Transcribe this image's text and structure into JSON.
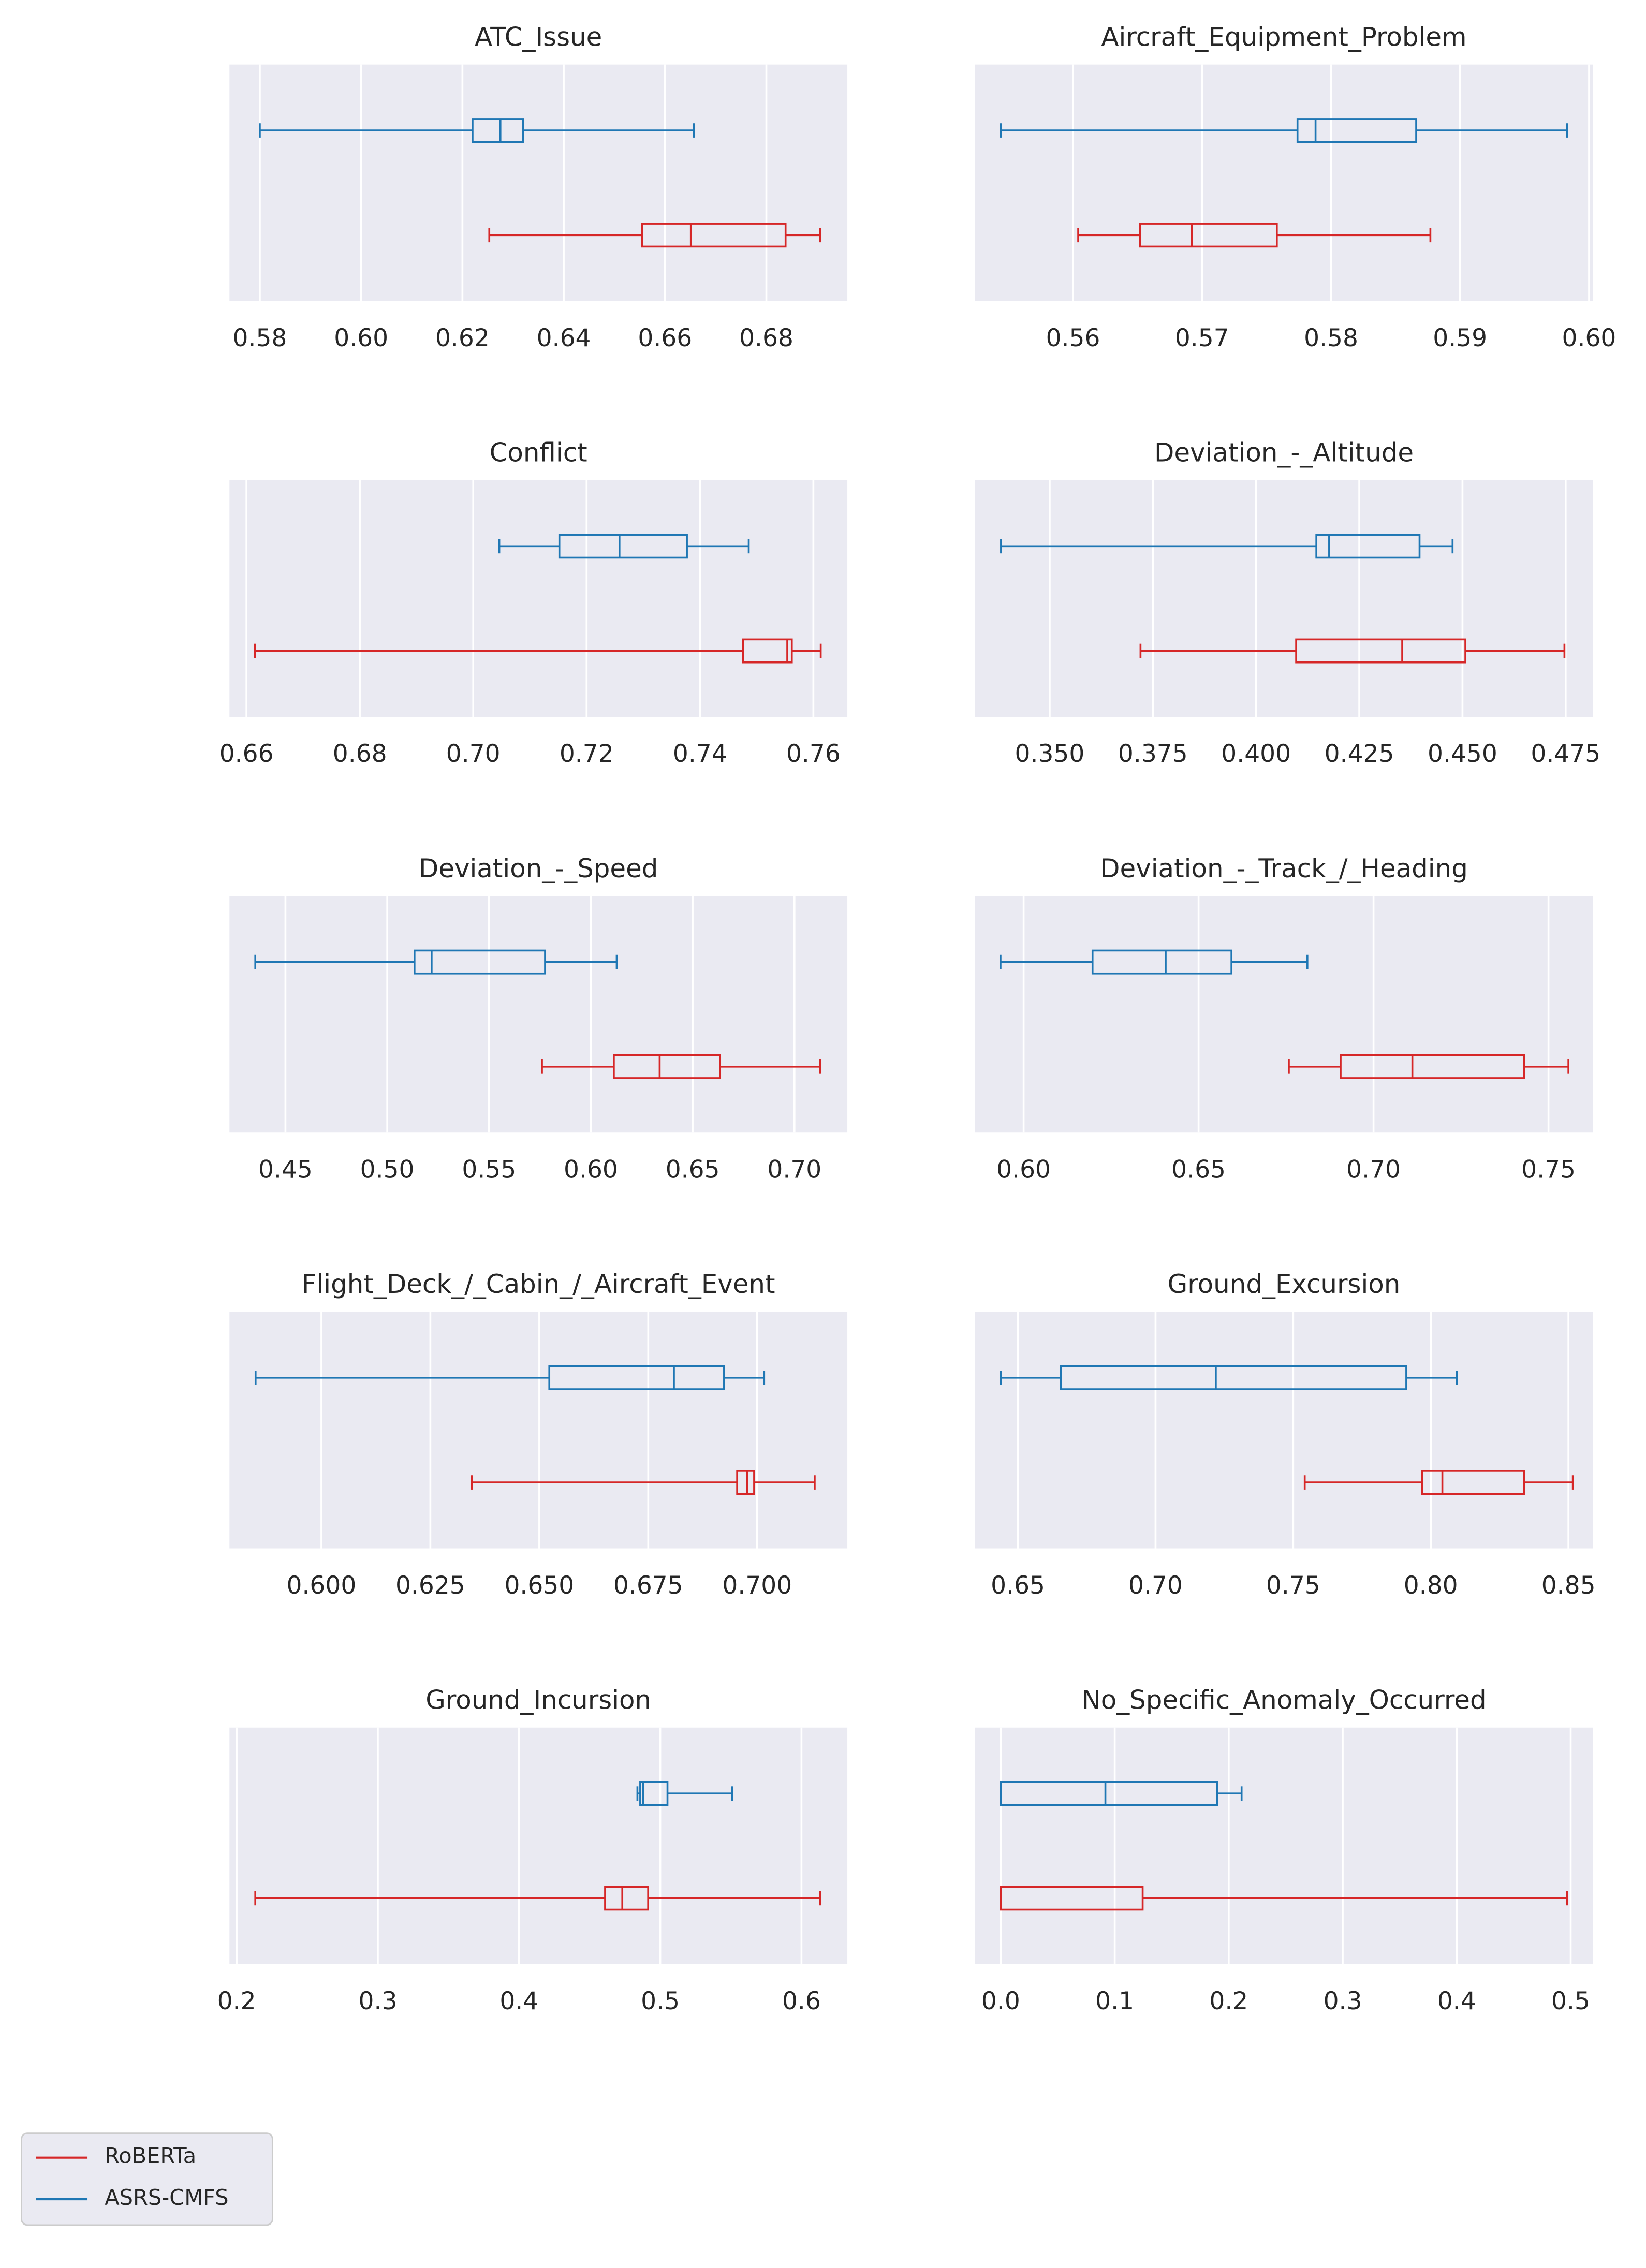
{
  "chart_data": [
    {
      "type": "box",
      "title": "ATC_Issue",
      "xlim": [
        0.574,
        0.696
      ],
      "xticks": [
        0.58,
        {
          "value": 0.6,
          "label": "0.60"
        },
        0.62,
        0.64,
        0.66,
        0.68
      ],
      "grid": true,
      "legend": "lower left",
      "series": [
        {
          "name": "RoBERTa",
          "color": "#d62728",
          "values": [
            0.6253,
            0.6555,
            0.6651,
            0.6838,
            0.6906
          ]
        },
        {
          "name": "ASRS-CMFS",
          "color": "#1f77b4",
          "values": [
            0.58,
            0.622,
            0.6275,
            0.632,
            0.6657
          ]
        }
      ]
    },
    {
      "type": "box",
      "title": "Aircraft_Equipment_Problem",
      "xlim": [
        0.5524,
        0.6003
      ],
      "xticks": [
        0.56,
        0.57,
        0.58,
        0.59,
        {
          "value": 0.6,
          "label": "0.60"
        }
      ],
      "grid": true,
      "series": [
        {
          "name": "RoBERTa",
          "color": "#d62728",
          "values": [
            0.5604,
            0.5652,
            0.5692,
            0.5758,
            0.5877
          ]
        },
        {
          "name": "ASRS-CMFS",
          "color": "#1f77b4",
          "values": [
            0.5544,
            0.5774,
            0.5788,
            0.5866,
            0.5983
          ]
        }
      ]
    },
    {
      "type": "box",
      "title": "Conflict",
      "xlim": [
        0.657,
        0.766
      ],
      "xticks": [
        0.66,
        0.68,
        {
          "value": 0.7,
          "label": "0.70"
        },
        0.72,
        0.74,
        0.76
      ],
      "grid": true,
      "series": [
        {
          "name": "RoBERTa",
          "color": "#d62728",
          "values": [
            0.6615,
            0.7476,
            0.7554,
            0.7562,
            0.7613
          ]
        },
        {
          "name": "ASRS-CMFS",
          "color": "#1f77b4",
          "values": [
            0.7046,
            0.7152,
            0.7258,
            0.7377,
            0.7486
          ]
        }
      ]
    },
    {
      "type": "box",
      "title": "Deviation_-_Altitude",
      "xlim": [
        0.3319,
        0.4816
      ],
      "xticks": [
        {
          "value": 0.35,
          "label": "0.350"
        },
        0.375,
        {
          "value": 0.4,
          "label": "0.400"
        },
        0.425,
        {
          "value": 0.45,
          "label": "0.450"
        },
        0.475
      ],
      "grid": true,
      "series": [
        {
          "name": "RoBERTa",
          "color": "#d62728",
          "values": [
            0.372,
            0.4097,
            0.4354,
            0.4507,
            0.4747
          ]
        },
        {
          "name": "ASRS-CMFS",
          "color": "#1f77b4",
          "values": [
            0.3382,
            0.4146,
            0.4177,
            0.4396,
            0.4476
          ]
        }
      ]
    },
    {
      "type": "box",
      "title": "Deviation_-_Speed",
      "xlim": [
        0.4225,
        0.726
      ],
      "xticks": [
        0.45,
        {
          "value": 0.5,
          "label": "0.50"
        },
        0.55,
        {
          "value": 0.6,
          "label": "0.60"
        },
        0.65,
        {
          "value": 0.7,
          "label": "0.70"
        }
      ],
      "grid": true,
      "series": [
        {
          "name": "RoBERTa",
          "color": "#d62728",
          "values": [
            0.576,
            0.6113,
            0.6338,
            0.6634,
            0.7127
          ]
        },
        {
          "name": "ASRS-CMFS",
          "color": "#1f77b4",
          "values": [
            0.4352,
            0.5134,
            0.5218,
            0.5775,
            0.6127
          ]
        }
      ]
    },
    {
      "type": "box",
      "title": "Deviation_-_Track_/_Heading",
      "xlim": [
        0.5861,
        0.7627
      ],
      "xticks": [
        {
          "value": 0.6,
          "label": "0.60"
        },
        0.65,
        {
          "value": 0.7,
          "label": "0.70"
        },
        0.75
      ],
      "grid": true,
      "series": [
        {
          "name": "RoBERTa",
          "color": "#d62728",
          "values": [
            0.6758,
            0.6906,
            0.7111,
            0.743,
            0.7557
          ]
        },
        {
          "name": "ASRS-CMFS",
          "color": "#1f77b4",
          "values": [
            0.5934,
            0.6197,
            0.6406,
            0.6594,
            0.6811
          ]
        }
      ]
    },
    {
      "type": "box",
      "title": "Flight_Deck_/_Cabin_/_Aircraft_Event",
      "xlim": [
        0.5789,
        0.7207
      ],
      "xticks": [
        {
          "value": 0.6,
          "label": "0.600"
        },
        0.625,
        {
          "value": 0.65,
          "label": "0.650"
        },
        0.675,
        {
          "value": 0.7,
          "label": "0.700"
        }
      ],
      "grid": true,
      "series": [
        {
          "name": "RoBERTa",
          "color": "#d62728",
          "values": [
            0.6345,
            0.6954,
            0.6977,
            0.6993,
            0.7132
          ]
        },
        {
          "name": "ASRS-CMFS",
          "color": "#1f77b4",
          "values": [
            0.5849,
            0.6523,
            0.6809,
            0.6924,
            0.7016
          ]
        }
      ]
    },
    {
      "type": "box",
      "title": "Ground_Excursion",
      "xlim": [
        0.6344,
        0.8589
      ],
      "xticks": [
        0.65,
        {
          "value": 0.7,
          "label": "0.70"
        },
        0.75,
        {
          "value": 0.8,
          "label": "0.80"
        },
        0.85
      ],
      "grid": true,
      "series": [
        {
          "name": "RoBERTa",
          "color": "#d62728",
          "values": [
            0.7542,
            0.7969,
            0.8042,
            0.8339,
            0.8516
          ]
        },
        {
          "name": "ASRS-CMFS",
          "color": "#1f77b4",
          "values": [
            0.6438,
            0.6656,
            0.7219,
            0.7911,
            0.8094
          ]
        }
      ]
    },
    {
      "type": "box",
      "title": "Ground_Incursion",
      "xlim": [
        0.1949,
        0.6325
      ],
      "xticks": [
        0.2,
        0.3,
        0.4,
        0.5,
        0.6
      ],
      "grid": true,
      "series": [
        {
          "name": "RoBERTa",
          "color": "#d62728",
          "values": [
            0.2132,
            0.4609,
            0.4731,
            0.4914,
            0.6132
          ]
        },
        {
          "name": "ASRS-CMFS",
          "color": "#1f77b4",
          "values": [
            0.4838,
            0.4858,
            0.4878,
            0.5051,
            0.5508
          ]
        }
      ]
    },
    {
      "type": "box",
      "title": "No_Specific_Anomaly_Occurred",
      "xlim": [
        -0.0226,
        0.5195
      ],
      "xticks": [
        {
          "value": 0,
          "label": "0.0"
        },
        0.1,
        0.2,
        0.3,
        0.4,
        0.5
      ],
      "grid": true,
      "series": [
        {
          "name": "RoBERTa",
          "color": "#d62728",
          "values": [
            0,
            0,
            0,
            0.1245,
            0.4969
          ]
        },
        {
          "name": "ASRS-CMFS",
          "color": "#1f77b4",
          "values": [
            0,
            0,
            0.0918,
            0.1899,
            0.2113
          ]
        }
      ]
    }
  ]
}
